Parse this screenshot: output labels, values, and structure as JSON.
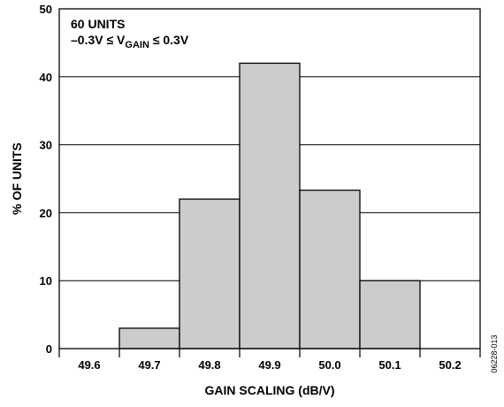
{
  "chart_data": {
    "type": "bar",
    "subtype": "histogram",
    "x_ticks": [
      "49.6",
      "49.7",
      "49.8",
      "49.9",
      "50.0",
      "50.1",
      "50.2"
    ],
    "bins": [
      {
        "start": 49.65,
        "end": 49.75,
        "value": 3
      },
      {
        "start": 49.75,
        "end": 49.85,
        "value": 22
      },
      {
        "start": 49.85,
        "end": 49.95,
        "value": 42
      },
      {
        "start": 49.95,
        "end": 50.05,
        "value": 23.3
      },
      {
        "start": 50.05,
        "end": 50.15,
        "value": 10
      }
    ],
    "xlim": [
      49.55,
      50.25
    ],
    "ylim": [
      0,
      50
    ],
    "y_ticks": [
      "0",
      "10",
      "20",
      "30",
      "40",
      "50"
    ],
    "xlabel": "GAIN SCALING (dB/V)",
    "ylabel": "% OF UNITS",
    "annotation_line1": "60 UNITS",
    "annotation_line2_prefix": "–0.3V ≤ V",
    "annotation_line2_sub": "GAIN",
    "annotation_line2_suffix": " ≤ 0.3V",
    "figure_id": "06228-013",
    "grid": true,
    "bar_color": "#cccccc",
    "edge_color": "#000000"
  }
}
